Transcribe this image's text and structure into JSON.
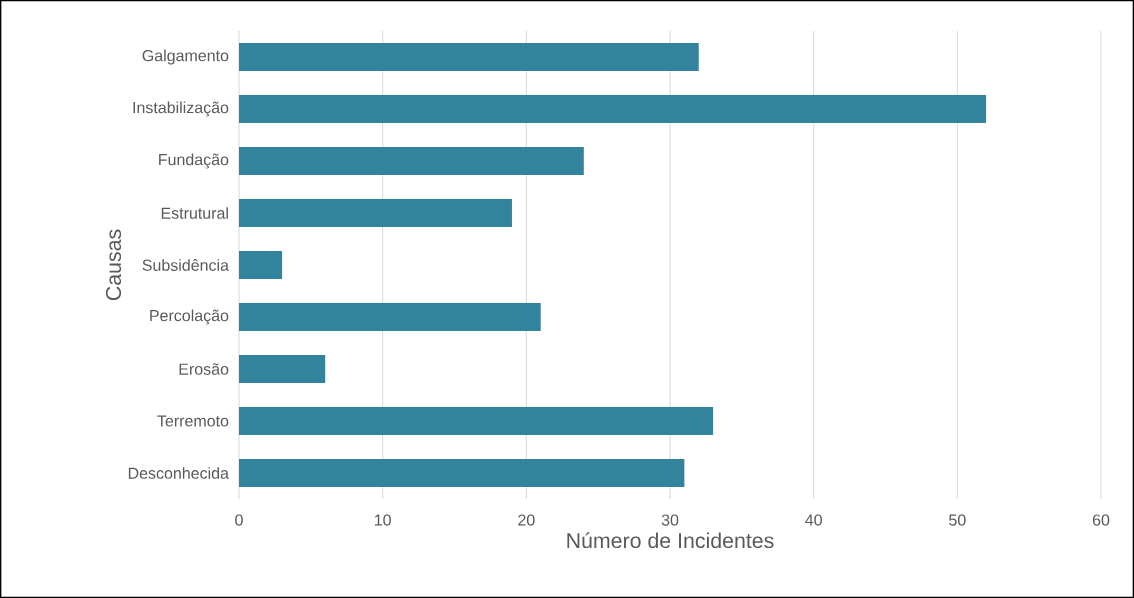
{
  "chart_data": {
    "type": "bar",
    "orientation": "horizontal",
    "xlabel": "Número de Incidentes",
    "ylabel": "Causas",
    "categories": [
      "Galgamento",
      "Instabilização",
      "Fundação",
      "Estrutural",
      "Subsidência",
      "Percolação",
      "Erosão",
      "Terremoto",
      "Desconhecida"
    ],
    "values": [
      32,
      52,
      24,
      19,
      3,
      21,
      6,
      33,
      31
    ],
    "color": "#31849b",
    "xlim": [
      0,
      60
    ],
    "xticks": [
      0,
      10,
      20,
      30,
      40,
      50,
      60
    ],
    "grid": "x"
  }
}
